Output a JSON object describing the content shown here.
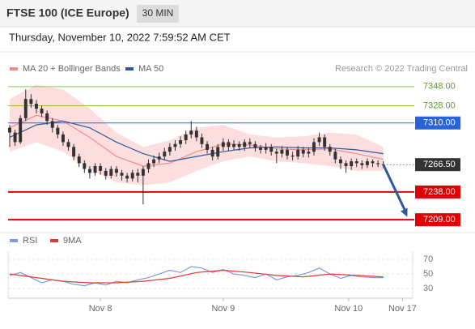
{
  "header": {
    "title": "FTSE 100 (ICE Europe)",
    "interval": "30 MIN",
    "timestamp": "Thursday, November 10, 2022 7:59:52 AM CET",
    "source": "Research © 2022 Trading Central"
  },
  "chart_data": [
    {
      "type": "candlestick",
      "xlim": [
        -0.3,
        75.5
      ],
      "ylim": [
        7199,
        7358
      ],
      "color": "#333333",
      "open": [
        7305,
        7300,
        7290,
        7315,
        7335,
        7330,
        7325,
        7320,
        7312,
        7305,
        7298,
        7290,
        7285,
        7275,
        7268,
        7262,
        7258,
        7265,
        7260,
        7255,
        7262,
        7258,
        7255,
        7252,
        7258,
        7255,
        7262,
        7268,
        7272,
        7275,
        7280,
        7285,
        7288,
        7292,
        7298,
        7302,
        7295,
        7288,
        7282,
        7275,
        7285,
        7290,
        7285,
        7288,
        7285,
        7290,
        7288,
        7284,
        7282,
        7285,
        7280,
        7278,
        7282,
        7276,
        7275,
        7282,
        7278,
        7280,
        7290,
        7295,
        7285,
        7280,
        7272,
        7268,
        7265,
        7270,
        7268,
        7266,
        7270,
        7268,
        7267
      ],
      "high": [
        7308,
        7303,
        7318,
        7345,
        7340,
        7334,
        7328,
        7323,
        7315,
        7308,
        7301,
        7293,
        7288,
        7278,
        7271,
        7265,
        7268,
        7268,
        7263,
        7265,
        7265,
        7261,
        7258,
        7261,
        7262,
        7265,
        7272,
        7276,
        7279,
        7284,
        7289,
        7292,
        7296,
        7302,
        7312,
        7306,
        7299,
        7291,
        7285,
        7288,
        7294,
        7293,
        7292,
        7291,
        7293,
        7294,
        7291,
        7287,
        7289,
        7288,
        7283,
        7286,
        7285,
        7280,
        7286,
        7285,
        7284,
        7294,
        7300,
        7298,
        7288,
        7283,
        7275,
        7271,
        7273,
        7273,
        7271,
        7273,
        7272,
        7271,
        7270
      ],
      "low": [
        7285,
        7286,
        7288,
        7312,
        7326,
        7320,
        7316,
        7308,
        7300,
        7294,
        7286,
        7281,
        7271,
        7264,
        7258,
        7252,
        7255,
        7256,
        7251,
        7252,
        7254,
        7250,
        7248,
        7249,
        7248,
        7225,
        7258,
        7264,
        7268,
        7271,
        7276,
        7281,
        7284,
        7288,
        7294,
        7291,
        7284,
        7278,
        7271,
        7272,
        7281,
        7281,
        7282,
        7281,
        7281,
        7284,
        7280,
        7278,
        7278,
        7276,
        7268,
        7274,
        7272,
        7271,
        7272,
        7274,
        7274,
        7276,
        7286,
        7281,
        7276,
        7268,
        7262,
        7258,
        7261,
        7264,
        7262,
        7263,
        7264,
        7264,
        7263
      ],
      "close": [
        7300,
        7290,
        7315,
        7335,
        7330,
        7325,
        7320,
        7312,
        7305,
        7298,
        7290,
        7285,
        7275,
        7268,
        7262,
        7258,
        7265,
        7260,
        7255,
        7262,
        7258,
        7255,
        7252,
        7258,
        7255,
        7262,
        7268,
        7272,
        7275,
        7280,
        7285,
        7288,
        7292,
        7298,
        7302,
        7295,
        7288,
        7282,
        7275,
        7285,
        7290,
        7285,
        7288,
        7285,
        7290,
        7288,
        7284,
        7282,
        7285,
        7280,
        7278,
        7282,
        7276,
        7275,
        7282,
        7278,
        7280,
        7290,
        7295,
        7285,
        7280,
        7272,
        7268,
        7265,
        7270,
        7268,
        7266,
        7270,
        7268,
        7267,
        7266.5
      ],
      "band": {
        "color": "#fbd3d3",
        "x": [
          0,
          5,
          10,
          15,
          20,
          25,
          30,
          35,
          40,
          45,
          50,
          55,
          60,
          65,
          70
        ],
        "upper": [
          7335,
          7350,
          7345,
          7325,
          7300,
          7285,
          7292,
          7305,
          7308,
          7298,
          7295,
          7296,
          7300,
          7298,
          7285
        ],
        "lower": [
          7280,
          7290,
          7280,
          7262,
          7248,
          7245,
          7248,
          7260,
          7270,
          7275,
          7270,
          7268,
          7265,
          7260,
          7260
        ]
      },
      "series": [
        {
          "name": "MA 20 + Bollinger Bands",
          "color": "#f08c8c",
          "x": [
            0,
            5,
            10,
            15,
            20,
            25,
            30,
            35,
            40,
            45,
            50,
            55,
            60,
            65,
            70
          ],
          "values": [
            7305,
            7318,
            7312,
            7295,
            7275,
            7265,
            7268,
            7280,
            7288,
            7287,
            7283,
            7282,
            7283,
            7278,
            7272
          ]
        },
        {
          "name": "MA 50",
          "color": "#2c5aa0",
          "x": [
            0,
            5,
            10,
            15,
            20,
            25,
            30,
            35,
            40,
            45,
            50,
            55,
            60,
            65,
            70
          ],
          "values": [
            7295,
            7308,
            7312,
            7305,
            7290,
            7278,
            7270,
            7275,
            7280,
            7284,
            7285,
            7284,
            7284,
            7282,
            7278
          ]
        }
      ],
      "levels": [
        {
          "value": 7348,
          "label": "7348.00",
          "color": "#8bc34a"
        },
        {
          "value": 7328,
          "label": "7328.00",
          "color": "#8bc34a"
        },
        {
          "value": 7310,
          "label": "7310.00",
          "color": "#2962d9"
        },
        {
          "value": 7238,
          "label": "7238.00",
          "color": "#e00000"
        },
        {
          "value": 7209,
          "label": "7209.00",
          "color": "#e00000"
        }
      ],
      "last_price": {
        "value": 7266.5,
        "label": "7266.50",
        "color": "#333333"
      },
      "forecast_arrow": {
        "x": [
          70,
          74.5
        ],
        "y": [
          7266.5,
          7212
        ],
        "color": "#2c5aa0"
      }
    },
    {
      "type": "line",
      "xlim": [
        -0.3,
        75.5
      ],
      "ylim": [
        17,
        92
      ],
      "yticks": [
        70,
        50,
        30
      ],
      "xticks": [
        {
          "value": 17,
          "label": "Nov 8"
        },
        {
          "value": 40,
          "label": "Nov 9"
        },
        {
          "value": 63.5,
          "label": "Nov 10"
        },
        {
          "value": 73.6,
          "label": "Nov 17"
        }
      ],
      "series": [
        {
          "name": "RSI",
          "color": "#7f9be0",
          "x": [
            0,
            2,
            4,
            6,
            8,
            10,
            12,
            14,
            16,
            18,
            20,
            22,
            24,
            26,
            28,
            30,
            32,
            34,
            36,
            38,
            40,
            42,
            44,
            46,
            48,
            50,
            52,
            54,
            56,
            58,
            60,
            62,
            64,
            66,
            68,
            70
          ],
          "values": [
            48,
            52,
            45,
            38,
            42,
            40,
            36,
            34,
            38,
            35,
            40,
            38,
            42,
            45,
            50,
            55,
            52,
            60,
            58,
            52,
            56,
            50,
            48,
            45,
            50,
            42,
            46,
            48,
            52,
            58,
            50,
            44,
            48,
            46,
            45,
            45
          ]
        },
        {
          "name": "9MA",
          "color": "#e53935",
          "x": [
            0,
            5,
            10,
            15,
            20,
            25,
            30,
            35,
            40,
            45,
            50,
            55,
            60,
            65,
            70
          ],
          "values": [
            50,
            45,
            40,
            38,
            38,
            40,
            44,
            52,
            55,
            52,
            48,
            46,
            50,
            48,
            46
          ]
        }
      ]
    }
  ]
}
